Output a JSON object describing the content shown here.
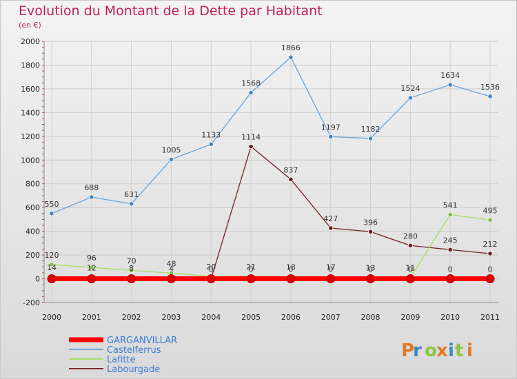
{
  "chart_data": {
    "type": "line",
    "title": "Evolution du Montant de la Dette par Habitant",
    "subtitle": "(en €)",
    "xlabel": "",
    "ylabel": "",
    "ylim": [
      -200,
      2000
    ],
    "y_ticks": [
      -200,
      0,
      200,
      400,
      600,
      800,
      1000,
      1200,
      1400,
      1600,
      1800,
      2000
    ],
    "x": [
      "2000",
      "2001",
      "2002",
      "2003",
      "2004",
      "2005",
      "2006",
      "2007",
      "2008",
      "2009",
      "2010",
      "2011"
    ],
    "grid": true,
    "legend_position": "bottom-left",
    "series": [
      {
        "name": "Castelferrus",
        "color": "#6fa8dc",
        "marker": "#3d85c6",
        "values": [
          550,
          688,
          631,
          1005,
          1133,
          1568,
          1866,
          1197,
          1182,
          1524,
          1634,
          1536
        ],
        "labels": [
          "550",
          "688",
          "631",
          "1005",
          "1133",
          "1568",
          "1866",
          "1197",
          "1182",
          "1524",
          "1634",
          "1536"
        ]
      },
      {
        "name": "Labourgade",
        "color": "#7b2b2b",
        "marker": "#6a1f1f",
        "values": [
          14,
          12,
          8,
          4,
          0,
          1114,
          837,
          427,
          396,
          280,
          245,
          212
        ],
        "labels": [
          "14",
          "12",
          "8",
          "4",
          "0",
          "1114",
          "837",
          "427",
          "396",
          "280",
          "245",
          "212"
        ]
      },
      {
        "name": "Lafitte",
        "color": "#a7e06b",
        "marker": "#76c043",
        "values": [
          120,
          96,
          70,
          48,
          20,
          21,
          18,
          17,
          13,
          11,
          541,
          495
        ],
        "labels": [
          "120",
          "96",
          "70",
          "48",
          "20",
          "21",
          "18",
          "17",
          "13",
          "11",
          "541",
          "495"
        ]
      },
      {
        "name": "GARGANVILLAR",
        "color": "#ff0000",
        "marker": "#e00000",
        "values": [
          0,
          0,
          0,
          0,
          0,
          0,
          0,
          0,
          0,
          0,
          0,
          0
        ],
        "labels": [
          "",
          "",
          "",
          "",
          "",
          "0",
          "0",
          "0",
          "0",
          "0",
          "0",
          "0"
        ]
      }
    ],
    "legend": [
      {
        "name": "GARGANVILLAR",
        "color": "#ff0000"
      },
      {
        "name": "Castelferrus",
        "color": "#6fa8dc"
      },
      {
        "name": "Lafitte",
        "color": "#a7e06b"
      },
      {
        "name": "Labourgade",
        "color": "#7b2b2b"
      }
    ]
  },
  "logo": {
    "text": "Proxiti",
    "colors": [
      "#e07a2a",
      "#3d85c6",
      "#8cc63f",
      "#e07a2a",
      "#3d85c6",
      "#8cc63f",
      "#e07a2a"
    ]
  }
}
